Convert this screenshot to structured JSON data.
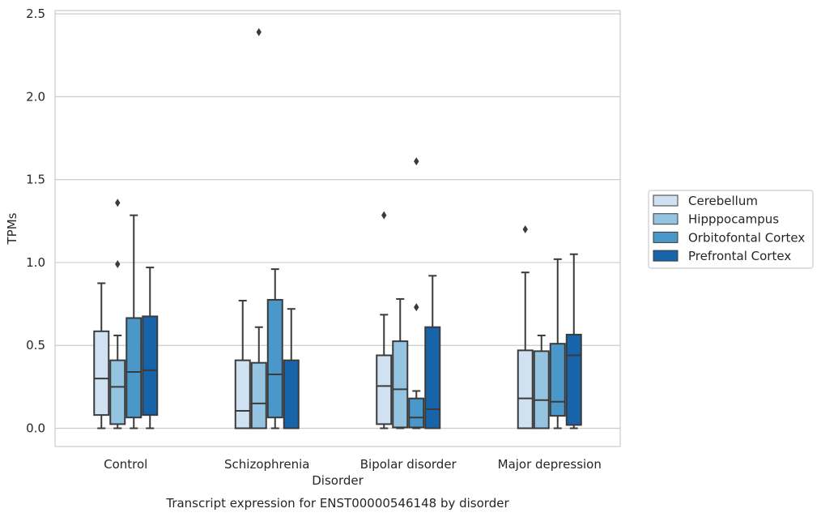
{
  "chart_data": {
    "type": "box",
    "title": "Transcript expression for ENST00000546148 by disorder",
    "xlabel": "Disorder",
    "ylabel": "TPMs",
    "ylim": [
      -0.11,
      2.52
    ],
    "yticks": [
      "0.0",
      "0.5",
      "1.0",
      "1.5",
      "2.0",
      "2.5"
    ],
    "grid": true,
    "legend_placement": "right",
    "categories": [
      "Control",
      "Schizophrenia",
      "Bipolar disorder",
      "Major depression"
    ],
    "series": [
      {
        "name": "Cerebellum",
        "color": "#d0e1f2",
        "boxes": [
          {
            "whislo": 0.0,
            "q1": 0.08,
            "med": 0.3,
            "q3": 0.585,
            "whishi": 0.875,
            "fliers": []
          },
          {
            "whislo": 0.0,
            "q1": 0.0,
            "med": 0.105,
            "q3": 0.41,
            "whishi": 0.77,
            "fliers": []
          },
          {
            "whislo": 0.0,
            "q1": 0.025,
            "med": 0.255,
            "q3": 0.44,
            "whishi": 0.685,
            "fliers": [
              1.285
            ]
          },
          {
            "whislo": 0.0,
            "q1": 0.0,
            "med": 0.18,
            "q3": 0.47,
            "whishi": 0.94,
            "fliers": [
              1.2
            ]
          }
        ]
      },
      {
        "name": "Hipppocampus",
        "color": "#94c4df",
        "boxes": [
          {
            "whislo": 0.0,
            "q1": 0.025,
            "med": 0.25,
            "q3": 0.41,
            "whishi": 0.56,
            "fliers": [
              0.99,
              1.36
            ]
          },
          {
            "whislo": 0.0,
            "q1": 0.0,
            "med": 0.15,
            "q3": 0.395,
            "whishi": 0.61,
            "fliers": [
              2.39
            ]
          },
          {
            "whislo": 0.0,
            "q1": 0.005,
            "med": 0.235,
            "q3": 0.525,
            "whishi": 0.78,
            "fliers": []
          },
          {
            "whislo": 0.0,
            "q1": 0.0,
            "med": 0.17,
            "q3": 0.465,
            "whishi": 0.56,
            "fliers": []
          }
        ]
      },
      {
        "name": "Orbitofontal Cortex",
        "color": "#4a98c9",
        "boxes": [
          {
            "whislo": 0.0,
            "q1": 0.065,
            "med": 0.34,
            "q3": 0.665,
            "whishi": 1.285,
            "fliers": []
          },
          {
            "whislo": 0.0,
            "q1": 0.065,
            "med": 0.325,
            "q3": 0.775,
            "whishi": 0.96,
            "fliers": []
          },
          {
            "whislo": 0.0,
            "q1": 0.005,
            "med": 0.065,
            "q3": 0.18,
            "whishi": 0.225,
            "fliers": [
              0.73,
              1.61
            ]
          },
          {
            "whislo": 0.0,
            "q1": 0.075,
            "med": 0.16,
            "q3": 0.51,
            "whishi": 1.02,
            "fliers": []
          }
        ]
      },
      {
        "name": "Prefrontal Cortex",
        "color": "#1764ab",
        "boxes": [
          {
            "whislo": 0.0,
            "q1": 0.08,
            "med": 0.35,
            "q3": 0.675,
            "whishi": 0.97,
            "fliers": []
          },
          {
            "whislo": 0.0,
            "q1": 0.0,
            "med": 0.0,
            "q3": 0.41,
            "whishi": 0.72,
            "fliers": []
          },
          {
            "whislo": 0.0,
            "q1": 0.0,
            "med": 0.115,
            "q3": 0.61,
            "whishi": 0.92,
            "fliers": []
          },
          {
            "whislo": 0.0,
            "q1": 0.02,
            "med": 0.44,
            "q3": 0.565,
            "whishi": 1.05,
            "fliers": []
          }
        ]
      }
    ]
  }
}
